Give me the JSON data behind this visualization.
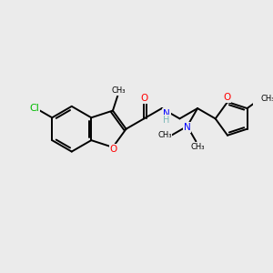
{
  "background_color": "#ebebeb",
  "bond_color": "#000000",
  "bond_width": 1.4,
  "atom_colors": {
    "O": "#ff0000",
    "N": "#0000ff",
    "Cl": "#00bb00",
    "H_label": "#7ab8b8"
  },
  "font_size": 7.5,
  "figsize": [
    3.0,
    3.0
  ],
  "dpi": 100,
  "xlim": [
    0,
    10
  ],
  "ylim": [
    0,
    10
  ]
}
